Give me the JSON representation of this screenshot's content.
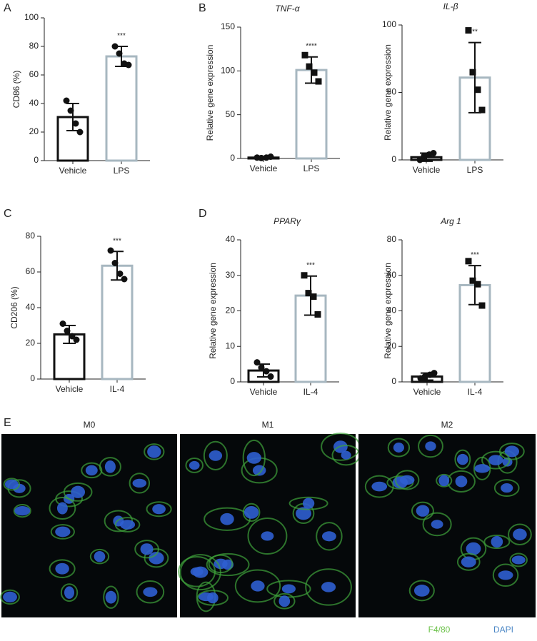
{
  "chart_data": [
    {
      "type": "bar",
      "panel": "A",
      "ylabel": "CD86 (%)",
      "categories": [
        "Vehicle",
        "LPS"
      ],
      "values": [
        30.5,
        73
      ],
      "errors": [
        9.5,
        7
      ],
      "points": [
        [
          42,
          35,
          26,
          20
        ],
        [
          80,
          75,
          68,
          67
        ]
      ],
      "markers": [
        "circle",
        "circle"
      ],
      "colors": [
        "#111111",
        "#a7b7c0"
      ],
      "significance": "***",
      "ylim": [
        0,
        100
      ],
      "yticks": [
        0,
        20,
        40,
        60,
        80,
        100
      ]
    },
    {
      "type": "bar",
      "panel": "B",
      "title": "TNF-α",
      "ylabel": "Relative gene expression",
      "categories": [
        "Vehicle",
        "LPS"
      ],
      "values": [
        1,
        101
      ],
      "errors": [
        0.8,
        15
      ],
      "points": [
        [
          1,
          0.5,
          1,
          2
        ],
        [
          118,
          105,
          98,
          88
        ]
      ],
      "markers": [
        "circle",
        "square"
      ],
      "colors": [
        "#111111",
        "#a7b7c0"
      ],
      "significance": "****",
      "ylim": [
        0,
        150
      ],
      "yticks": [
        0,
        50,
        100,
        150
      ]
    },
    {
      "type": "bar",
      "title": "IL-β",
      "ylabel": "Relative gene expression",
      "categories": [
        "Vehicle",
        "LPS"
      ],
      "values": [
        2,
        61
      ],
      "errors": [
        3,
        26
      ],
      "points": [
        [
          0,
          3,
          4,
          5
        ],
        [
          96,
          65,
          52,
          37
        ]
      ],
      "markers": [
        "circle",
        "square"
      ],
      "colors": [
        "#111111",
        "#a7b7c0"
      ],
      "significance": "**",
      "ylim": [
        0,
        100
      ],
      "yticks": [
        0,
        50,
        100
      ]
    },
    {
      "type": "bar",
      "panel": "C",
      "ylabel": "CD206 (%)",
      "categories": [
        "Vehicle",
        "IL-4"
      ],
      "values": [
        25,
        63.5
      ],
      "errors": [
        5,
        8
      ],
      "points": [
        [
          31,
          27,
          24,
          22
        ],
        [
          72,
          65,
          59,
          56
        ]
      ],
      "markers": [
        "circle",
        "circle"
      ],
      "colors": [
        "#111111",
        "#a7b7c0"
      ],
      "significance": "***",
      "ylim": [
        0,
        80
      ],
      "yticks": [
        0,
        20,
        40,
        60,
        80
      ]
    },
    {
      "type": "bar",
      "panel": "D",
      "title": "PPARγ",
      "ylabel": "Relative gene expression",
      "categories": [
        "Vehicle",
        "IL-4"
      ],
      "values": [
        3.2,
        24.3
      ],
      "errors": [
        1.8,
        5.5
      ],
      "points": [
        [
          5.5,
          4,
          3,
          1.5
        ],
        [
          30,
          25,
          24,
          19
        ]
      ],
      "markers": [
        "circle",
        "square"
      ],
      "colors": [
        "#111111",
        "#a7b7c0"
      ],
      "significance": "***",
      "ylim": [
        0,
        40
      ],
      "yticks": [
        0,
        10,
        20,
        30,
        40
      ]
    },
    {
      "type": "bar",
      "title": "Arg 1",
      "ylabel": "Relative gene expression",
      "categories": [
        "Vehicle",
        "IL-4"
      ],
      "values": [
        3,
        54.5
      ],
      "errors": [
        2,
        11
      ],
      "points": [
        [
          2,
          3,
          4,
          5
        ],
        [
          68,
          57,
          55,
          43
        ]
      ],
      "markers": [
        "circle",
        "square"
      ],
      "colors": [
        "#111111",
        "#a7b7c0"
      ],
      "significance": "***",
      "ylim": [
        0,
        80
      ],
      "yticks": [
        0,
        20,
        40,
        60,
        80
      ]
    }
  ],
  "images": {
    "panel": "E",
    "labels": [
      "M0",
      "M1",
      "M2"
    ],
    "legend": [
      {
        "name": "F4/80",
        "color": "#6cc24a"
      },
      {
        "name": "DAPI",
        "color": "#4a86c5"
      }
    ]
  }
}
